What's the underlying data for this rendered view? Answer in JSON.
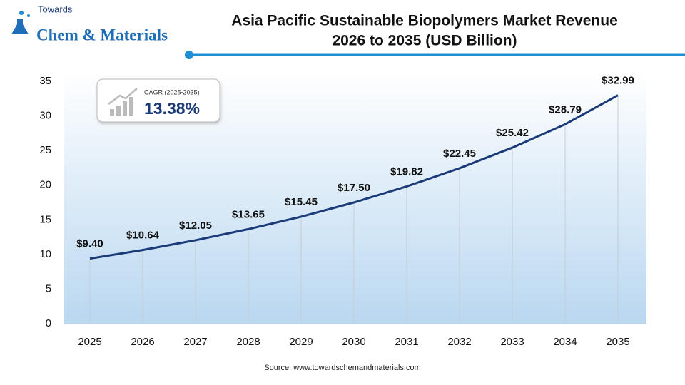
{
  "logo": {
    "line1": "Towards",
    "line2": "Chem & Materials"
  },
  "cagr": {
    "label": "CAGR (2025-2035)",
    "value": "13.38%"
  },
  "chart_data": {
    "type": "line",
    "title": [
      "Asia Pacific Sustainable Biopolymers Market Revenue",
      "2026 to 2035 (USD Billion)"
    ],
    "categories": [
      "2025",
      "2026",
      "2027",
      "2028",
      "2029",
      "2030",
      "2031",
      "2032",
      "2033",
      "2034",
      "2035"
    ],
    "values": [
      9.4,
      10.64,
      12.05,
      13.65,
      15.45,
      17.5,
      19.82,
      22.45,
      25.42,
      28.79,
      32.99
    ],
    "value_labels": [
      "$9.40",
      "$10.64",
      "$12.05",
      "$13.65",
      "$15.45",
      "$17.50",
      "$19.82",
      "$22.45",
      "$25.42",
      "$28.79",
      "$32.99"
    ],
    "color": "#1b3a78",
    "ylim": [
      0,
      35
    ],
    "yticks": [
      0,
      5,
      10,
      15,
      20,
      25,
      30,
      35
    ],
    "grid": false,
    "source": "Source: www.towardschemandmaterials.com"
  }
}
